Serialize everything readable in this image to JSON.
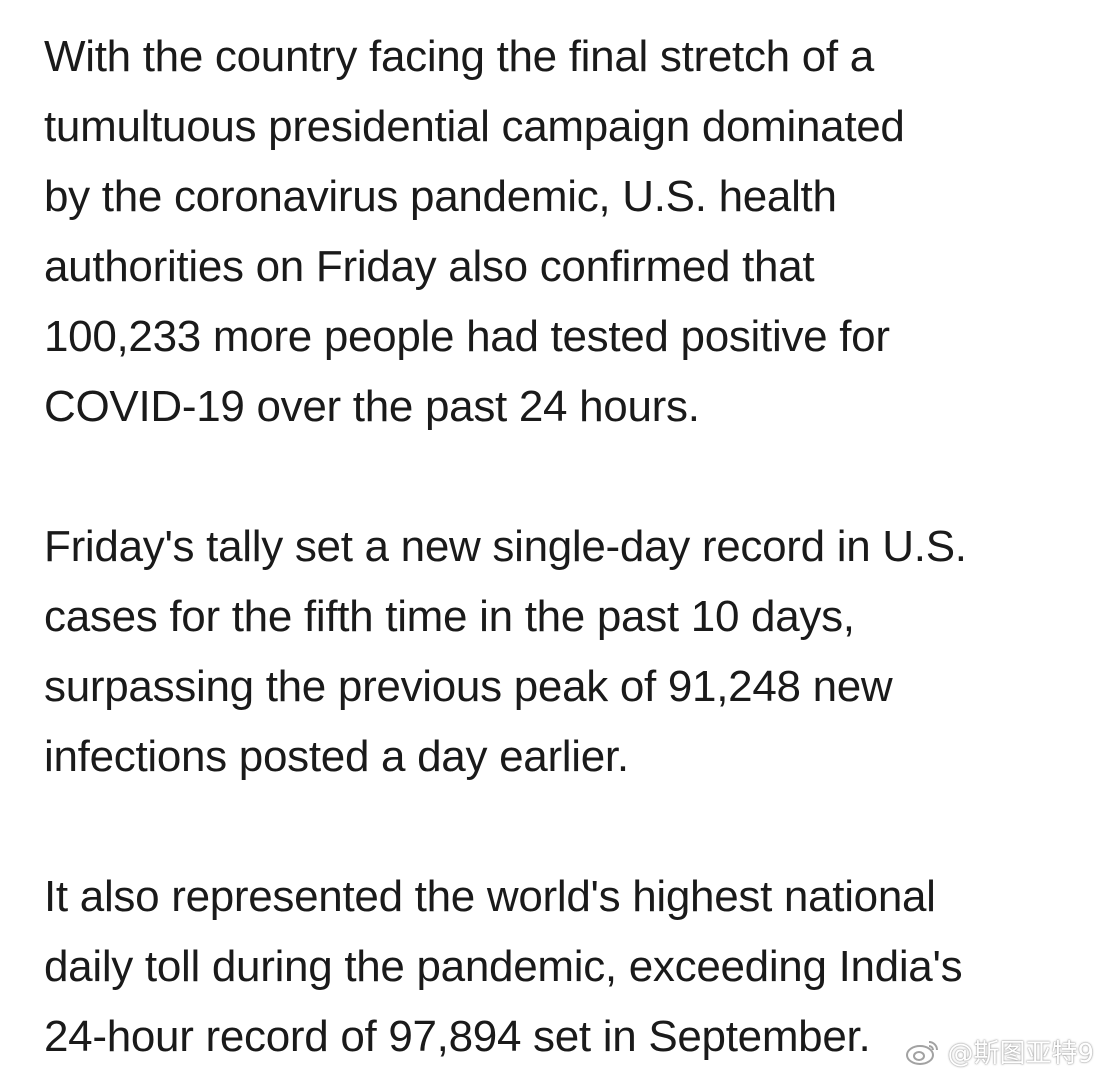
{
  "article": {
    "paragraphs": [
      "With the country facing the final stretch of a\ntumultuous presidential campaign dominated\nby the coronavirus pandemic, U.S. health\nauthorities on Friday also confirmed that\n100,233 more people had tested positive for\nCOVID-19 over the past 24 hours.",
      "Friday's tally set a new single-day record in U.S.\ncases for the fifth time in the past 10 days,\nsurpassing the previous peak of 91,248 new\ninfections posted a day earlier.",
      "It also represented the world's highest national\ndaily toll during the pandemic, exceeding India's\n24-hour record of 97,894 set in September."
    ]
  },
  "watermark": {
    "icon": "weibo-icon",
    "text": "@斯图亚特9"
  }
}
